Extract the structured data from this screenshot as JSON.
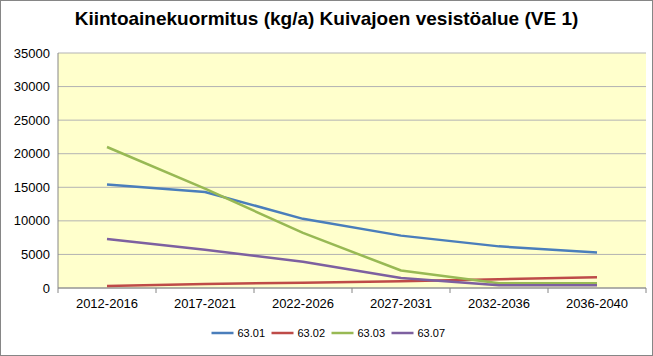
{
  "chart_data": {
    "type": "line",
    "title": "Kiintoainekuormitus (kg/a) Kuivajoen vesistöalue (VE 1)",
    "categories": [
      "2012-2016",
      "2017-2021",
      "2022-2026",
      "2027-2031",
      "2032-2036",
      "2036-2040"
    ],
    "series": [
      {
        "name": "63.01",
        "color": "#4a7ebb",
        "values": [
          15400,
          14300,
          10300,
          7800,
          6200,
          5300
        ]
      },
      {
        "name": "63.02",
        "color": "#be4b48",
        "values": [
          300,
          600,
          800,
          1000,
          1300,
          1600
        ]
      },
      {
        "name": "63.03",
        "color": "#98b954",
        "values": [
          21000,
          14800,
          8200,
          2600,
          700,
          700
        ]
      },
      {
        "name": "63.07",
        "color": "#7d60a0",
        "values": [
          7300,
          5700,
          3900,
          1500,
          400,
          400
        ]
      }
    ],
    "ylim": [
      0,
      35000
    ],
    "yticks": [
      0,
      5000,
      10000,
      15000,
      20000,
      25000,
      30000,
      35000
    ],
    "grid": true,
    "legend": "bottom"
  }
}
